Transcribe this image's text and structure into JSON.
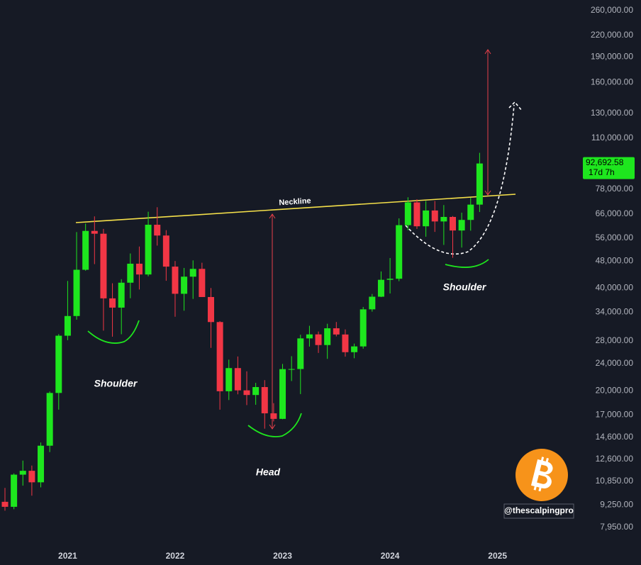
{
  "chart_data": {
    "type": "candlestick",
    "categories": [
      null,
      null,
      null,
      null,
      null,
      null,
      null,
      "2021",
      null,
      null,
      null,
      null,
      null,
      null,
      null,
      null,
      null,
      null,
      null,
      "2022",
      null,
      null,
      null,
      null,
      null,
      null,
      null,
      null,
      null,
      null,
      null,
      "2023",
      null,
      null,
      null,
      null,
      null,
      null,
      null,
      null,
      null,
      null,
      null,
      "2024",
      null,
      null,
      null,
      null,
      null,
      null,
      null,
      null,
      null,
      null,
      null,
      "2025"
    ],
    "open": [
      9450,
      9137,
      11350,
      11650,
      10780,
      13800,
      19700,
      28990,
      33110,
      45240,
      58800,
      57700,
      37300,
      35040,
      41460,
      47130,
      43820,
      61300,
      57000,
      46210,
      38470,
      43180,
      45510,
      37640,
      31790,
      19930,
      23300,
      20050,
      19430,
      20500,
      17170,
      16540,
      23140,
      23150,
      28470,
      29250,
      27220,
      30480,
      29230,
      25940,
      26970,
      34640,
      37720,
      42280,
      42580,
      61130,
      71280,
      60670,
      67490,
      62680,
      64620,
      58970,
      63330,
      70220,
      null,
      null
    ],
    "high": [
      10380,
      11450,
      12480,
      12070,
      14100,
      19900,
      29300,
      41950,
      58350,
      61790,
      64860,
      59600,
      41300,
      42450,
      50500,
      52920,
      66930,
      69000,
      59100,
      47990,
      45800,
      48200,
      47440,
      40000,
      31990,
      24670,
      25200,
      22800,
      21090,
      21480,
      18390,
      23960,
      25250,
      29190,
      31000,
      29820,
      31430,
      31800,
      30250,
      27490,
      35200,
      38420,
      44730,
      48970,
      64000,
      73780,
      72800,
      71980,
      71950,
      70020,
      65000,
      66500,
      73600,
      99600,
      null,
      null
    ],
    "low": [
      8900,
      8990,
      10540,
      9850,
      10420,
      13220,
      17600,
      28130,
      32300,
      44950,
      47000,
      30000,
      28800,
      29280,
      37330,
      39600,
      43280,
      53250,
      42000,
      32950,
      34320,
      37160,
      37700,
      26700,
      17600,
      18780,
      19520,
      18150,
      18190,
      15480,
      16260,
      16500,
      21350,
      19550,
      26940,
      25810,
      24800,
      28860,
      25170,
      24900,
      26560,
      34100,
      37620,
      38550,
      41880,
      59100,
      59600,
      56550,
      58400,
      53500,
      49050,
      52550,
      58900,
      66800,
      null,
      null
    ],
    "close": [
      9137,
      11350,
      11650,
      10780,
      13800,
      19700,
      28990,
      33110,
      45240,
      58800,
      57700,
      37300,
      35040,
      41460,
      47130,
      43820,
      61300,
      57000,
      46210,
      38470,
      43180,
      45510,
      37640,
      31790,
      19930,
      23300,
      20050,
      19430,
      20500,
      17170,
      16540,
      23140,
      23150,
      28470,
      29250,
      27220,
      30480,
      29230,
      25940,
      26970,
      34640,
      37720,
      42280,
      42580,
      61130,
      71280,
      60670,
      67490,
      62680,
      64620,
      58970,
      63330,
      70220,
      92692.58,
      null,
      null
    ],
    "up_color": "#1ee61e",
    "down_color": "#f23645",
    "log_scale": true,
    "ylim": [
      7020,
      279350
    ],
    "yticks": [
      {
        "value": 7950,
        "label": "7,950.00"
      },
      {
        "value": 9250,
        "label": "9,250.00"
      },
      {
        "value": 10850,
        "label": "10,850.00"
      },
      {
        "value": 12600,
        "label": "12,600.00"
      },
      {
        "value": 14600,
        "label": "14,600.00"
      },
      {
        "value": 17000,
        "label": "17,000.00"
      },
      {
        "value": 20000,
        "label": "20,000.00"
      },
      {
        "value": 24000,
        "label": "24,000.00"
      },
      {
        "value": 28000,
        "label": "28,000.00"
      },
      {
        "value": 34000,
        "label": "34,000.00"
      },
      {
        "value": 40000,
        "label": "40,000.00"
      },
      {
        "value": 48000,
        "label": "48,000.00"
      },
      {
        "value": 56000,
        "label": "56,000.00"
      },
      {
        "value": 66000,
        "label": "66,000.00"
      },
      {
        "value": 78000,
        "label": "78,000.00"
      },
      {
        "value": 110000,
        "label": "110,000.00"
      },
      {
        "value": 130000,
        "label": "130,000.00"
      },
      {
        "value": 160000,
        "label": "160,000.00"
      },
      {
        "value": 190000,
        "label": "190,000.00"
      },
      {
        "value": 220000,
        "label": "220,000.00"
      },
      {
        "value": 260000,
        "label": "260,000.00"
      }
    ],
    "grid": false,
    "last_price": {
      "value": 92692.58,
      "label": "92,692.58"
    },
    "countdown": "17d 7h",
    "annotations": [
      "Neckline",
      "Shoulder",
      "Head",
      "Shoulder"
    ],
    "watermark": "@thescalpingpro"
  }
}
